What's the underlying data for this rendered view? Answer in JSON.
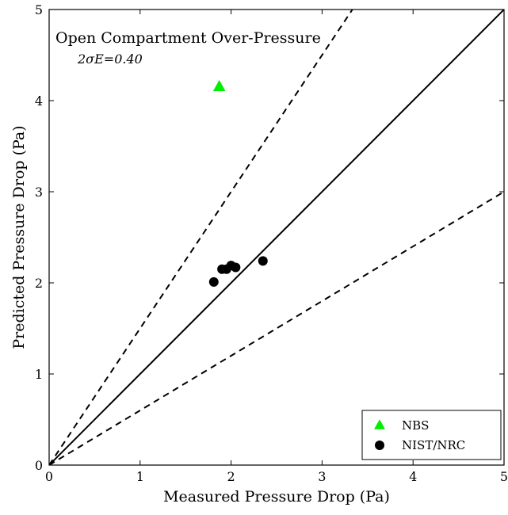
{
  "chart_data": {
    "type": "scatter",
    "title": "Open Compartment Over-Pressure",
    "annotation": "2σE=0.40",
    "xlabel": "Measured Pressure Drop (Pa)",
    "ylabel": "Predicted Pressure Drop (Pa)",
    "xlim": [
      0,
      5
    ],
    "ylim": [
      0,
      5
    ],
    "xticks": [
      0,
      1,
      2,
      3,
      4,
      5
    ],
    "yticks": [
      0,
      1,
      2,
      3,
      4,
      5
    ],
    "grid": false,
    "legend_position": "bottom-right",
    "reference_lines": [
      {
        "kind": "solid",
        "slope": 1.0
      },
      {
        "kind": "dashed",
        "slope": 1.5
      },
      {
        "kind": "dashed",
        "slope": 0.6
      }
    ],
    "series": [
      {
        "name": "NBS",
        "marker": "triangle",
        "color": "#00ee00",
        "points": [
          [
            1.87,
            4.15
          ]
        ]
      },
      {
        "name": "NIST/NRC",
        "marker": "circle",
        "color": "#000000",
        "points": [
          [
            1.81,
            2.01
          ],
          [
            1.9,
            2.15
          ],
          [
            1.95,
            2.15
          ],
          [
            2.0,
            2.19
          ],
          [
            2.05,
            2.17
          ],
          [
            2.35,
            2.24
          ]
        ]
      }
    ]
  }
}
